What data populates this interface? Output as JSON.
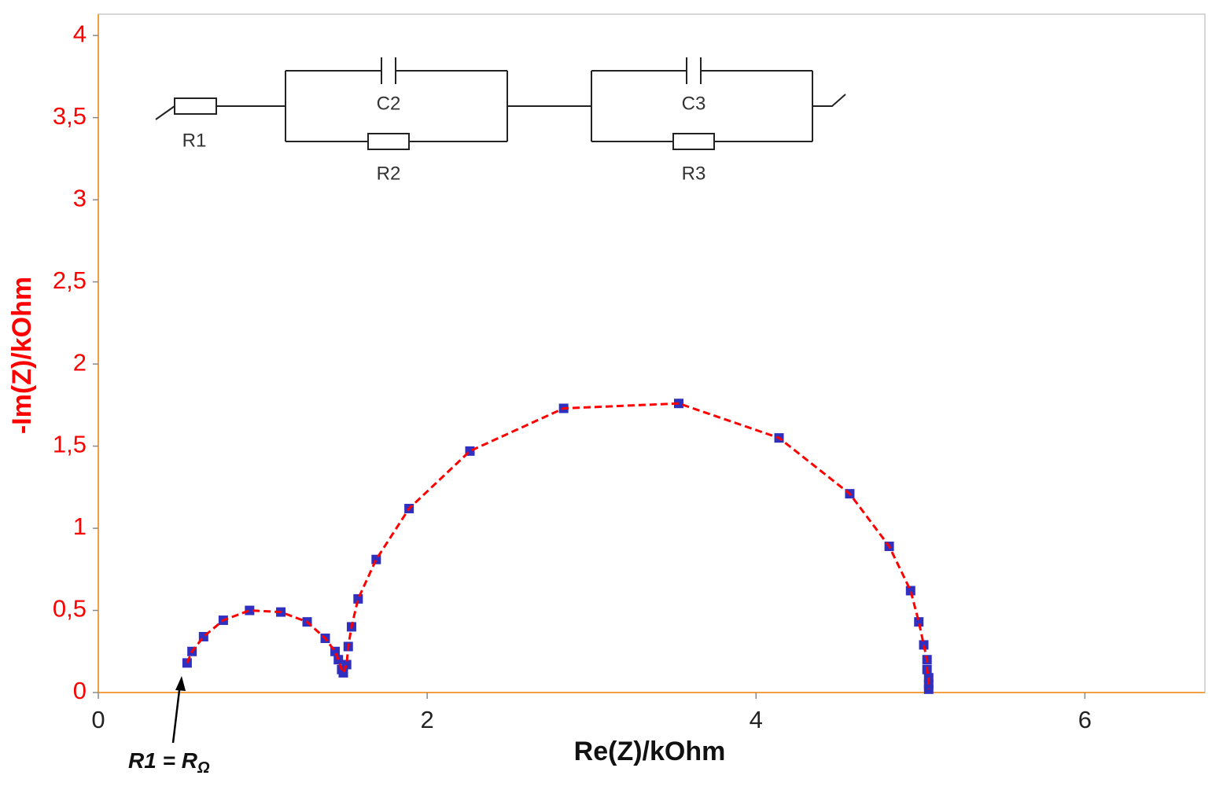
{
  "chart_data": {
    "type": "scatter-line",
    "x_label": "Re(Z)/kOhm",
    "y_label": "-Im(Z)/kOhm",
    "x": [
      0.54,
      0.57,
      0.64,
      0.76,
      0.92,
      1.11,
      1.27,
      1.38,
      1.44,
      1.46,
      1.48,
      1.49,
      1.51,
      1.52,
      1.54,
      1.58,
      1.69,
      1.89,
      2.26,
      2.83,
      3.53,
      4.14,
      4.57,
      4.81,
      4.94,
      4.99,
      5.02,
      5.04,
      5.04,
      5.05,
      5.05,
      5.05
    ],
    "series": [
      {
        "color": "#ff0000",
        "marker_color": "#3030c0",
        "line_style": "dashed",
        "values": [
          0.18,
          0.25,
          0.34,
          0.44,
          0.5,
          0.49,
          0.43,
          0.33,
          0.25,
          0.2,
          0.14,
          0.12,
          0.17,
          0.28,
          0.4,
          0.57,
          0.81,
          1.12,
          1.47,
          1.73,
          1.76,
          1.55,
          1.21,
          0.89,
          0.62,
          0.43,
          0.29,
          0.2,
          0.14,
          0.09,
          0.05,
          0.02
        ]
      }
    ],
    "xlim": [
      0,
      6.73
    ],
    "ylim": [
      0,
      4.13
    ],
    "xticks": [
      0,
      2,
      4,
      6
    ],
    "yticks": [
      0,
      {
        "value": 0.5,
        "label": "0,5"
      },
      1,
      {
        "value": 1.5,
        "label": "1,5"
      },
      2,
      {
        "value": 2.5,
        "label": "2,5"
      },
      3,
      {
        "value": 3.5,
        "label": "3,5"
      },
      4
    ],
    "y_axis_color": "#ff0000",
    "annotation": {
      "text": "R1 = R",
      "subscript": "Ω"
    }
  },
  "circuit": {
    "labels": [
      "R1",
      "C2",
      "R2",
      "C3",
      "R3"
    ]
  }
}
